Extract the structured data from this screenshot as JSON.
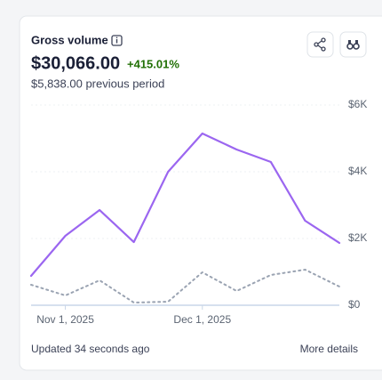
{
  "card": {
    "title": "Gross volume",
    "total": "$30,066.00",
    "change": "+415.01%",
    "previous": "$5,838.00 previous period",
    "updated": "Updated 34 seconds ago",
    "link": "More details"
  },
  "chart_data": {
    "type": "line",
    "categories": [
      null,
      "Nov 1, 2025",
      null,
      null,
      null,
      "Dec 1, 2025",
      null,
      null,
      null,
      null
    ],
    "series": [
      {
        "color": "#9b66f0",
        "style": "solid",
        "values": [
          880,
          2080,
          2853,
          1893,
          4000,
          5147,
          4667,
          4293,
          2533,
          1867
        ]
      },
      {
        "color": "#9aa3b2",
        "style": "dotted",
        "values": [
          613,
          293,
          747,
          80,
          107,
          987,
          427,
          907,
          1067,
          560
        ]
      }
    ],
    "ylim": [
      0,
      6000
    ],
    "yticks": [
      {
        "value": 0,
        "label": "$0"
      },
      {
        "value": 2000,
        "label": "$2K"
      },
      {
        "value": 4000,
        "label": "$4K"
      },
      {
        "value": 6000,
        "label": "$6K"
      }
    ],
    "grid": true,
    "y_axis_side": "right"
  }
}
